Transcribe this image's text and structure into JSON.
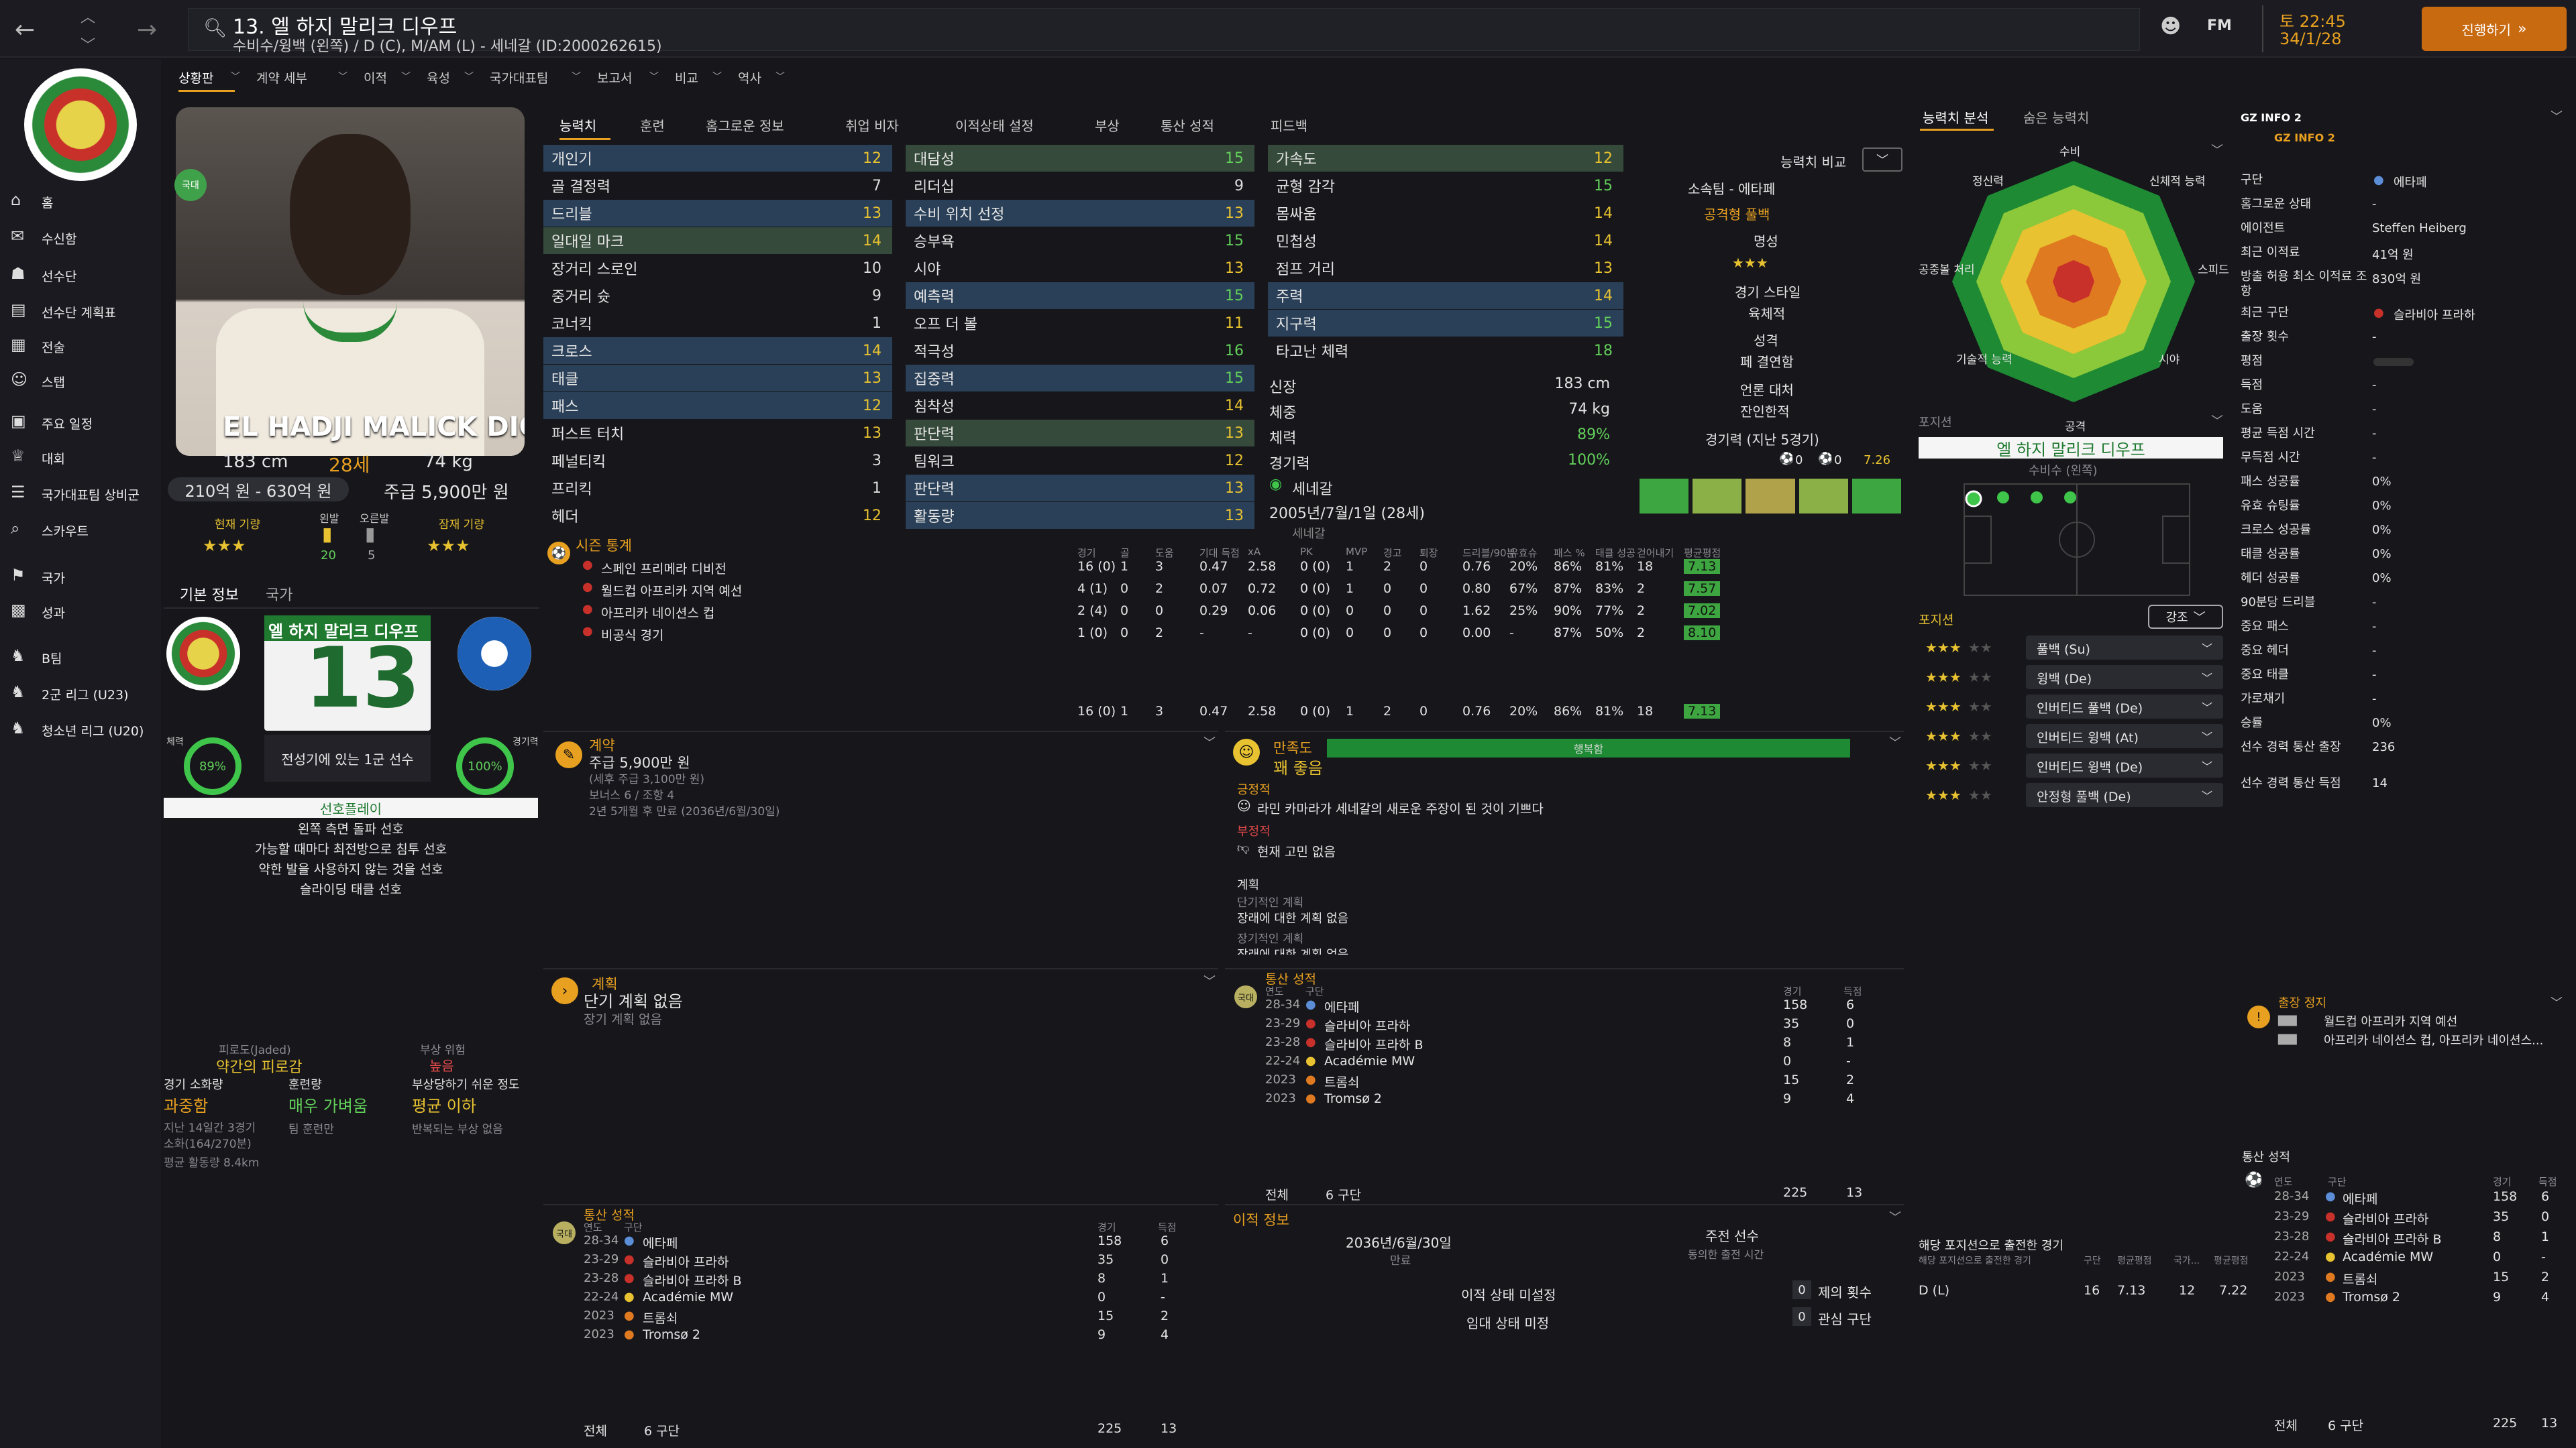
{
  "topbar": {
    "player_title": "13. 엘 하지 말리크 디우프",
    "player_sub": "수비수/윙백 (왼쪽) / D (C), M/AM (L) - 세네갈 (ID:2000262615)",
    "fm": "FM",
    "date_line1": "토 22:45",
    "date_line2": "34/1/28",
    "continue": "진행하기"
  },
  "nav": {
    "items": [
      "홈",
      "수신함",
      "선수단",
      "선수단 계획표",
      "전술",
      "스탭",
      "주요 일정",
      "대회",
      "국가대표팀 상비군",
      "스카우트",
      "국가",
      "성과",
      "B팀",
      "2군 리그 (U23)",
      "청소년 리그 (U20)"
    ]
  },
  "subtabs": [
    "상황판",
    "계약 세부",
    "이적",
    "육성",
    "국가대표팀",
    "보고서",
    "비교",
    "역사"
  ],
  "player": {
    "name_banner": "EL HADJI MALICK DIOUF",
    "height": "183 cm",
    "age": "28세",
    "weight": "74 kg",
    "value": "210억 원 - 630억 원",
    "wage": "주급 5,900만 원",
    "current_label": "현재 기량",
    "potential_label": "잠재 기량",
    "stars_current": "★★★",
    "stars_potential": "★★★",
    "foot_left": "왼발",
    "foot_right": "오른발",
    "foot_left_val": "20",
    "foot_right_val": "5",
    "tab_basic": "기본 정보",
    "tab_nation": "국가",
    "shirt_number": "13",
    "shirt_name": "엘 하지 말리크 디우프",
    "role_text": "전성기에 있는 1군 선수",
    "condition_label": "체력",
    "condition_val": "89%",
    "sharp_label": "경기력",
    "sharp_val": "100%",
    "preferred_title": "선호플레이",
    "prefs": [
      "왼쪽 측면 돌파 선호",
      "가능할 때마다 최전방으로 침투 선호",
      "약한 발을 사용하지 않는 것을 선호",
      "슬라이딩 태클 선호"
    ],
    "fatigue_title": "피로도(Jaded)",
    "fatigue_val": "약간의 피로감",
    "injury_title": "부상 위험",
    "injury_val": "높음",
    "load_title": "경기 소화량",
    "load_val": "과중함",
    "training_title": "훈련량",
    "training_val": "매우 가벼움",
    "prone_title": "부상당하기 쉬운 정도",
    "prone_val": "평균 이하",
    "load_sub1": "지난 14일간 3경기",
    "load_sub2": "소화(164/270분)",
    "load_sub3": "평균 활동량 8.4km",
    "training_sub": "팀 훈련만",
    "prone_sub": "반복되는 부상 없음"
  },
  "attr_tabs": [
    "능력치",
    "훈련",
    "홈그로운 정보",
    "취업 비자",
    "이적상태 설정",
    "부상",
    "통산 성적",
    "피드백"
  ],
  "attrs_col1": [
    [
      "개인기",
      "12"
    ],
    [
      "골 결정력",
      "7"
    ],
    [
      "드리블",
      "13"
    ],
    [
      "일대일 마크",
      "14"
    ],
    [
      "장거리 스로인",
      "10"
    ],
    [
      "중거리 슛",
      "9"
    ],
    [
      "코너킥",
      "1"
    ],
    [
      "크로스",
      "14"
    ],
    [
      "태클",
      "13"
    ],
    [
      "패스",
      "12"
    ],
    [
      "퍼스트 터치",
      "13"
    ],
    [
      "페널티킥",
      "3"
    ],
    [
      "프리킥",
      "1"
    ],
    [
      "헤더",
      "12"
    ]
  ],
  "attrs_col2": [
    [
      "대담성",
      "15"
    ],
    [
      "리더십",
      "9"
    ],
    [
      "수비 위치 선정",
      "13"
    ],
    [
      "승부욕",
      "15"
    ],
    [
      "시야",
      "13"
    ],
    [
      "예측력",
      "15"
    ],
    [
      "오프 더 볼",
      "11"
    ],
    [
      "적극성",
      "16"
    ],
    [
      "집중력",
      "15"
    ],
    [
      "침착성",
      "14"
    ],
    [
      "판단력",
      "13"
    ],
    [
      "팀워크",
      "12"
    ],
    [
      "판단력",
      "13"
    ],
    [
      "활동량",
      "13"
    ]
  ],
  "attrs_col3": [
    [
      "가속도",
      "12"
    ],
    [
      "균형 감각",
      "15"
    ],
    [
      "몸싸움",
      "14"
    ],
    [
      "민첩성",
      "14"
    ],
    [
      "점프 거리",
      "13"
    ],
    [
      "주력",
      "14"
    ],
    [
      "지구력",
      "15"
    ],
    [
      "타고난 체력",
      "18"
    ]
  ],
  "personal": {
    "height_label": "신장",
    "height": "183 cm",
    "weight_label": "체중",
    "weight": "74 kg",
    "cond_label": "체력",
    "cond": "89%",
    "sharp_label": "경기력",
    "sharp": "100%",
    "nation": "세네갈",
    "dob": "2005년/7월/1일 (28세)",
    "nation2": "세네갈"
  },
  "compare": {
    "label": "능력치 비교",
    "club": "소속팀 - 에타페",
    "style": "공격형 풀백",
    "rep_label": "명성",
    "rep_stars": "★★★",
    "style_label": "경기 스타일",
    "style_val": "육체적",
    "personality_label": "성격",
    "personality_val": "페 결연함",
    "media_label": "언론 대처",
    "media_val": "잔인한적",
    "form_label": "경기력 (지난 5경기)",
    "form_goals": "0",
    "form_assists": "0",
    "form_rating": "7.26"
  },
  "season": {
    "title": "시즌 통계",
    "headers": [
      "경기",
      "골",
      "도움",
      "기대 득점",
      "xA",
      "PK",
      "MVP",
      "경고",
      "퇴장",
      "드리블/90분",
      "유효슈",
      "패스 %",
      "태클 성공",
      "걷어내기",
      "평균평점"
    ],
    "rows": [
      {
        "comp": "스페인 프리메라 디비전",
        "vals": [
          "16 (0)",
          "1",
          "3",
          "0.47",
          "2.58",
          "0 (0)",
          "1",
          "2",
          "0",
          "0.76",
          "20%",
          "86%",
          "81%",
          "18",
          "7.13"
        ]
      },
      {
        "comp": "월드컵 아프리카 지역 예선",
        "vals": [
          "4 (1)",
          "0",
          "2",
          "0.07",
          "0.72",
          "0 (0)",
          "1",
          "0",
          "0",
          "0.80",
          "67%",
          "87%",
          "83%",
          "2",
          "7.57"
        ]
      },
      {
        "comp": "아프리카 네이션스 컵",
        "vals": [
          "2 (4)",
          "0",
          "0",
          "0.29",
          "0.06",
          "0 (0)",
          "0",
          "0",
          "0",
          "1.62",
          "25%",
          "90%",
          "77%",
          "2",
          "7.02"
        ]
      },
      {
        "comp": "비공식 경기",
        "vals": [
          "1 (0)",
          "0",
          "2",
          "-",
          "-",
          "0 (0)",
          "0",
          "0",
          "0",
          "0.00",
          "-",
          "87%",
          "50%",
          "2",
          "8.10"
        ]
      }
    ],
    "total": [
      "16 (0)",
      "1",
      "3",
      "0.47",
      "2.58",
      "0 (0)",
      "1",
      "2",
      "0",
      "0.76",
      "20%",
      "86%",
      "81%",
      "18",
      "7.13"
    ]
  },
  "contract": {
    "title": "계약",
    "wage": "주급 5,900만 원",
    "tax": "(세후 주급 3,100만 원)",
    "bonus": "보너스 6 / 조항 4",
    "expiry": "2년 5개월 후 만료 (2036년/6월/30일)"
  },
  "happiness": {
    "title": "만족도",
    "bar_label": "행복함",
    "level": "꽤 좋음",
    "pos_title": "긍정적",
    "pos_item": "라민 카마라가 세네갈의 새로운 주장이 된 것이 기쁘다",
    "neg_title": "부정적",
    "neg_item": "현재 고민 없음",
    "plans_title": "계획",
    "short_plan": "단기적인 계획",
    "short_item": "장래에 대한 계획 없음",
    "long_plan": "장기적인 계획",
    "long_item": "장래에 대한 계획 없음"
  },
  "plans": {
    "title": "계획",
    "short": "단기 계획 없음",
    "long": "장기 계획 없음"
  },
  "career": {
    "title": "통산 성적",
    "h_year": "연도",
    "h_club": "구단",
    "h_apps": "경기",
    "h_goals": "득점",
    "rows": [
      [
        "28-34",
        "에타페",
        "158",
        "6"
      ],
      [
        "23-29",
        "슬라비아 프라하",
        "35",
        "0"
      ],
      [
        "23-28",
        "슬라비아 프라하 B",
        "8",
        "1"
      ],
      [
        "22-24",
        "Académie MW",
        "0",
        "-"
      ],
      [
        "2023",
        "트롬쇠",
        "15",
        "2"
      ],
      [
        "2023",
        "Tromsø 2",
        "9",
        "4"
      ]
    ],
    "total_label": "전체",
    "total_clubs": "6 구단",
    "total_apps": "225",
    "total_goals": "13"
  },
  "transfer": {
    "title": "이적 정보",
    "contract_end": "2036년/6월/30일",
    "contract_end_label": "만료",
    "sub_title": "주전 선수",
    "sub_label": "동의한 출전 시간",
    "transfer_status": "이적 상태 미설정",
    "loan_status": "임대 상태 미정",
    "offers_val": "0",
    "offers_label": "제의 횟수",
    "interest_val": "0",
    "interest_label": "관심 구단"
  },
  "analysis": {
    "tab1": "능력치 분석",
    "tab2": "숨은 능력치",
    "labels": [
      "수비",
      "신체적 능력",
      "스피드",
      "시야",
      "공격",
      "기술적 능력",
      "공중볼 처리",
      "정신력"
    ]
  },
  "position": {
    "title": "포지션",
    "name": "엘 하지 말리크 디우프",
    "role": "수비수 (왼쪽)",
    "roles_title": "포지션",
    "highlight": "강조",
    "roles": [
      [
        "★★★",
        "풀백 (Su)"
      ],
      [
        "★★★",
        "윙백 (De)"
      ],
      [
        "★★★",
        "인버티드 풀백 (De)"
      ],
      [
        "★★★",
        "인버티드 윙백 (At)"
      ],
      [
        "★★★",
        "인버티드 윙백 (De)"
      ],
      [
        "★★★",
        "안정형 풀백 (De)"
      ]
    ],
    "played_title": "해당 포지션으로 출전한 경기",
    "played_sub": "해당 포지션으로 출전한 경기",
    "played_h": [
      "구단",
      "평균평점",
      "국가...",
      "평균평점"
    ],
    "played_row": [
      "D (L)",
      "16",
      "7.13",
      "12",
      "7.22"
    ]
  },
  "gz": {
    "title": "GZ INFO 2",
    "sub": "GZ INFO 2",
    "rows": [
      [
        "구단",
        "에타페"
      ],
      [
        "홈그로운 상태",
        "-"
      ],
      [
        "에이전트",
        "Steffen Heiberg"
      ],
      [
        "최근 이적료",
        "41억 원"
      ],
      [
        "방출 허용 최소 이적료 조항",
        "830억 원"
      ],
      [
        "최근 구단",
        "슬라비아 프라하"
      ],
      [
        "출장 횟수",
        "-"
      ],
      [
        "평점",
        ""
      ],
      [
        "득점",
        "-"
      ],
      [
        "도움",
        "-"
      ],
      [
        "평균 득점 시간",
        "-"
      ],
      [
        "무득점 시간",
        "-"
      ],
      [
        "패스 성공률",
        "0%"
      ],
      [
        "유효 슈팅률",
        "0%"
      ],
      [
        "크로스 성공률",
        "0%"
      ],
      [
        "태클 성공률",
        "0%"
      ],
      [
        "헤더 성공률",
        "0%"
      ],
      [
        "90분당 드리블",
        "-"
      ],
      [
        "중요 패스",
        "-"
      ],
      [
        "중요 헤더",
        "-"
      ],
      [
        "중요 태클",
        "-"
      ],
      [
        "가로채기",
        "-"
      ],
      [
        "승률",
        "0%"
      ],
      [
        "선수 경력 통산 출장",
        "236"
      ],
      [
        "선수 경력 통산 득점",
        "14"
      ]
    ],
    "susp_title": "출장 정지",
    "susp": [
      "월드컵 아프리카 지역 예선",
      "아프리카 네이션스 컵, 아프리카 네이션스..."
    ]
  },
  "colors": {
    "accent": "#e8a020",
    "green": "#3ea641",
    "blue": "#2a4058"
  }
}
